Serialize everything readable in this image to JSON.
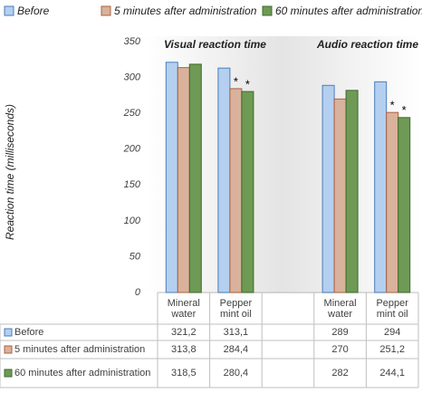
{
  "chart_data": {
    "type": "bar",
    "y_label": "Reaction time (milliseconds)",
    "annotations": [
      "Visual reaction time",
      "Audio reaction time"
    ],
    "categories": [
      "Mineral water",
      "Pepper mint oil",
      null,
      "Mineral water",
      "Pepper mint oil"
    ],
    "series": [
      {
        "name": "Before",
        "color": "#b4cfef",
        "edge": "#4a7ebb",
        "values": [
          321.2,
          313.1,
          null,
          289,
          294
        ],
        "value_labels": [
          "321,2",
          "313,1",
          null,
          "289",
          "294"
        ]
      },
      {
        "name": "5 minutes after administration",
        "color": "#d8b29c",
        "edge": "#b0603a",
        "values": [
          313.8,
          284.4,
          null,
          270,
          251.2
        ],
        "value_labels": [
          "313,8",
          "284,4",
          null,
          "270",
          "251,2"
        ],
        "markers": [
          null,
          "*",
          null,
          null,
          "*"
        ]
      },
      {
        "name": "60 minutes after administration",
        "color": "#6e9a55",
        "edge": "#3d6b2a",
        "values": [
          318.5,
          280.4,
          null,
          282,
          244.1
        ],
        "value_labels": [
          "318,5",
          "280,4",
          null,
          "282",
          "244,1"
        ],
        "markers": [
          null,
          "*",
          null,
          null,
          "*"
        ]
      }
    ],
    "ylim": [
      0,
      350
    ],
    "yticks": [
      0,
      50,
      100,
      150,
      200,
      250,
      300,
      350
    ]
  }
}
